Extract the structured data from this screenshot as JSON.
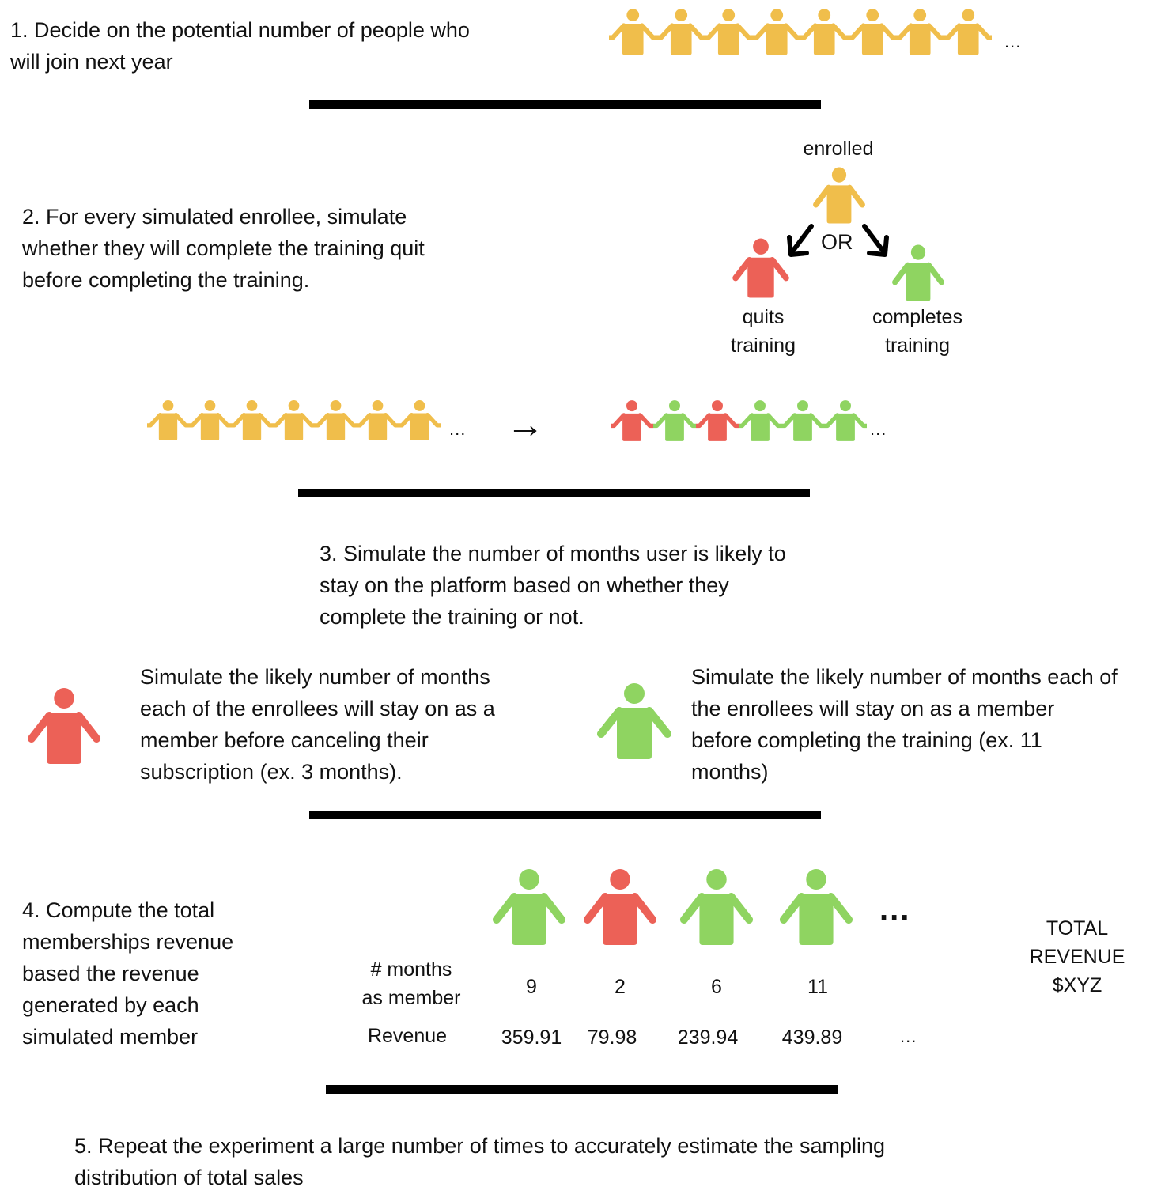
{
  "colors": {
    "yellow": "#f0be4b",
    "red": "#ec6157",
    "green": "#8fd461",
    "rule": "#000000"
  },
  "step1": {
    "text": "1. Decide on the potential number of people who\nwill join next year",
    "people": [
      "yellow",
      "yellow",
      "yellow",
      "yellow",
      "yellow",
      "yellow",
      "yellow",
      "yellow"
    ],
    "ellipsis": "..."
  },
  "step2": {
    "text": "2. For every simulated enrollee, simulate\nwhether they will complete the training quit\nbefore completing the training.",
    "enrolled_label": "enrolled",
    "or_label": "OR",
    "quits_label": "quits\ntraining",
    "completes_label": "completes\ntraining",
    "before_people": [
      "yellow",
      "yellow",
      "yellow",
      "yellow",
      "yellow",
      "yellow",
      "yellow"
    ],
    "after_people": [
      "red",
      "green",
      "red",
      "green",
      "green",
      "green"
    ],
    "ellipsis": "...",
    "arrow": "→"
  },
  "step3": {
    "text": "3. Simulate the number of months  user is likely to\nstay on the platform based on whether they\ncomplete the training or not.",
    "quit_text": "Simulate the likely number of months\neach of the enrollees will stay on as a\nmember before canceling their\nsubscription (ex. 3 months).",
    "complete_text": "Simulate the likely number of months each of\nthe enrollees will stay on as a member\nbefore completing the training (ex. 11\nmonths)"
  },
  "step4": {
    "text": "4. Compute the total\nmemberships revenue\nbased the revenue\ngenerated by each\nsimulated member",
    "months_label": "# months\nas member",
    "revenue_label": "Revenue",
    "members": [
      {
        "color": "green",
        "months": "9",
        "revenue": "359.91"
      },
      {
        "color": "red",
        "months": "2",
        "revenue": "79.98"
      },
      {
        "color": "green",
        "months": "6",
        "revenue": "239.94"
      },
      {
        "color": "green",
        "months": "11",
        "revenue": "439.89"
      }
    ],
    "ellipsis_big": "...",
    "ellipsis_small": "...",
    "total_label": "TOTAL\nREVENUE\n$XYZ"
  },
  "step5": {
    "text": "5. Repeat the experiment a large number of times to accurately estimate the sampling\ndistribution of total sales"
  }
}
